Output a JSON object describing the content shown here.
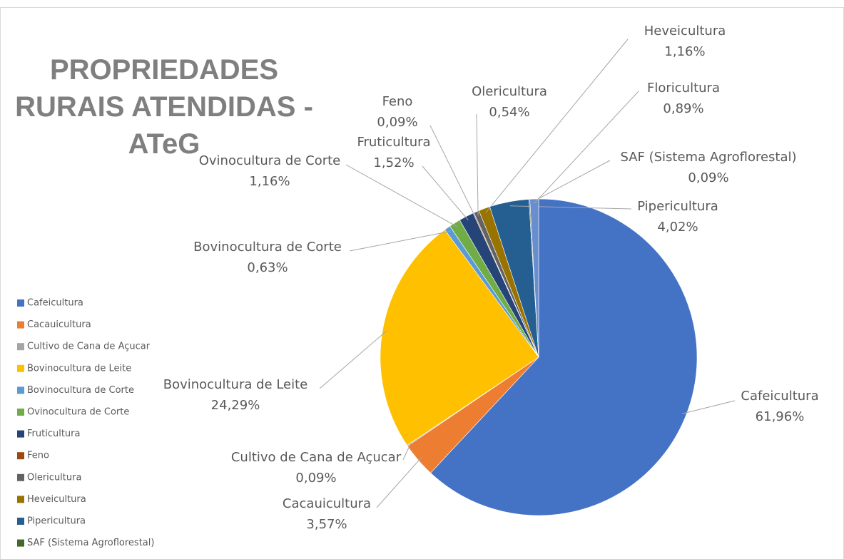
{
  "chart_data": {
    "type": "pie",
    "title": "PROPRIEDADES RURAIS ATENDIDAS - ATeG",
    "categories": [
      "Cafeicultura",
      "Cacauicultura",
      "Cultivo de Cana de Açucar",
      "Bovinocultura de Leite",
      "Bovinocultura de Corte",
      "Ovinocultura de Corte",
      "Fruticultura",
      "Feno",
      "Olericultura",
      "Heveicultura",
      "Pipericultura",
      "SAF (Sistema Agroflorestal)",
      "Floricultura"
    ],
    "values": [
      61.96,
      3.57,
      0.09,
      24.29,
      0.63,
      1.16,
      1.52,
      0.09,
      0.54,
      1.16,
      4.02,
      0.09,
      0.89
    ],
    "value_labels": [
      "61,96%",
      "3,57%",
      "0,09%",
      "24,29%",
      "0,63%",
      "1,16%",
      "1,52%",
      "0,09%",
      "0,54%",
      "1,16%",
      "4,02%",
      "0,09%",
      "0,89%"
    ],
    "colors": [
      "#4472c4",
      "#ed7d31",
      "#a5a5a5",
      "#ffc000",
      "#5b9bd5",
      "#70ad47",
      "#264478",
      "#9e480e",
      "#636363",
      "#997300",
      "#255e91",
      "#43682b",
      "#698ed0"
    ],
    "legend": "left"
  }
}
